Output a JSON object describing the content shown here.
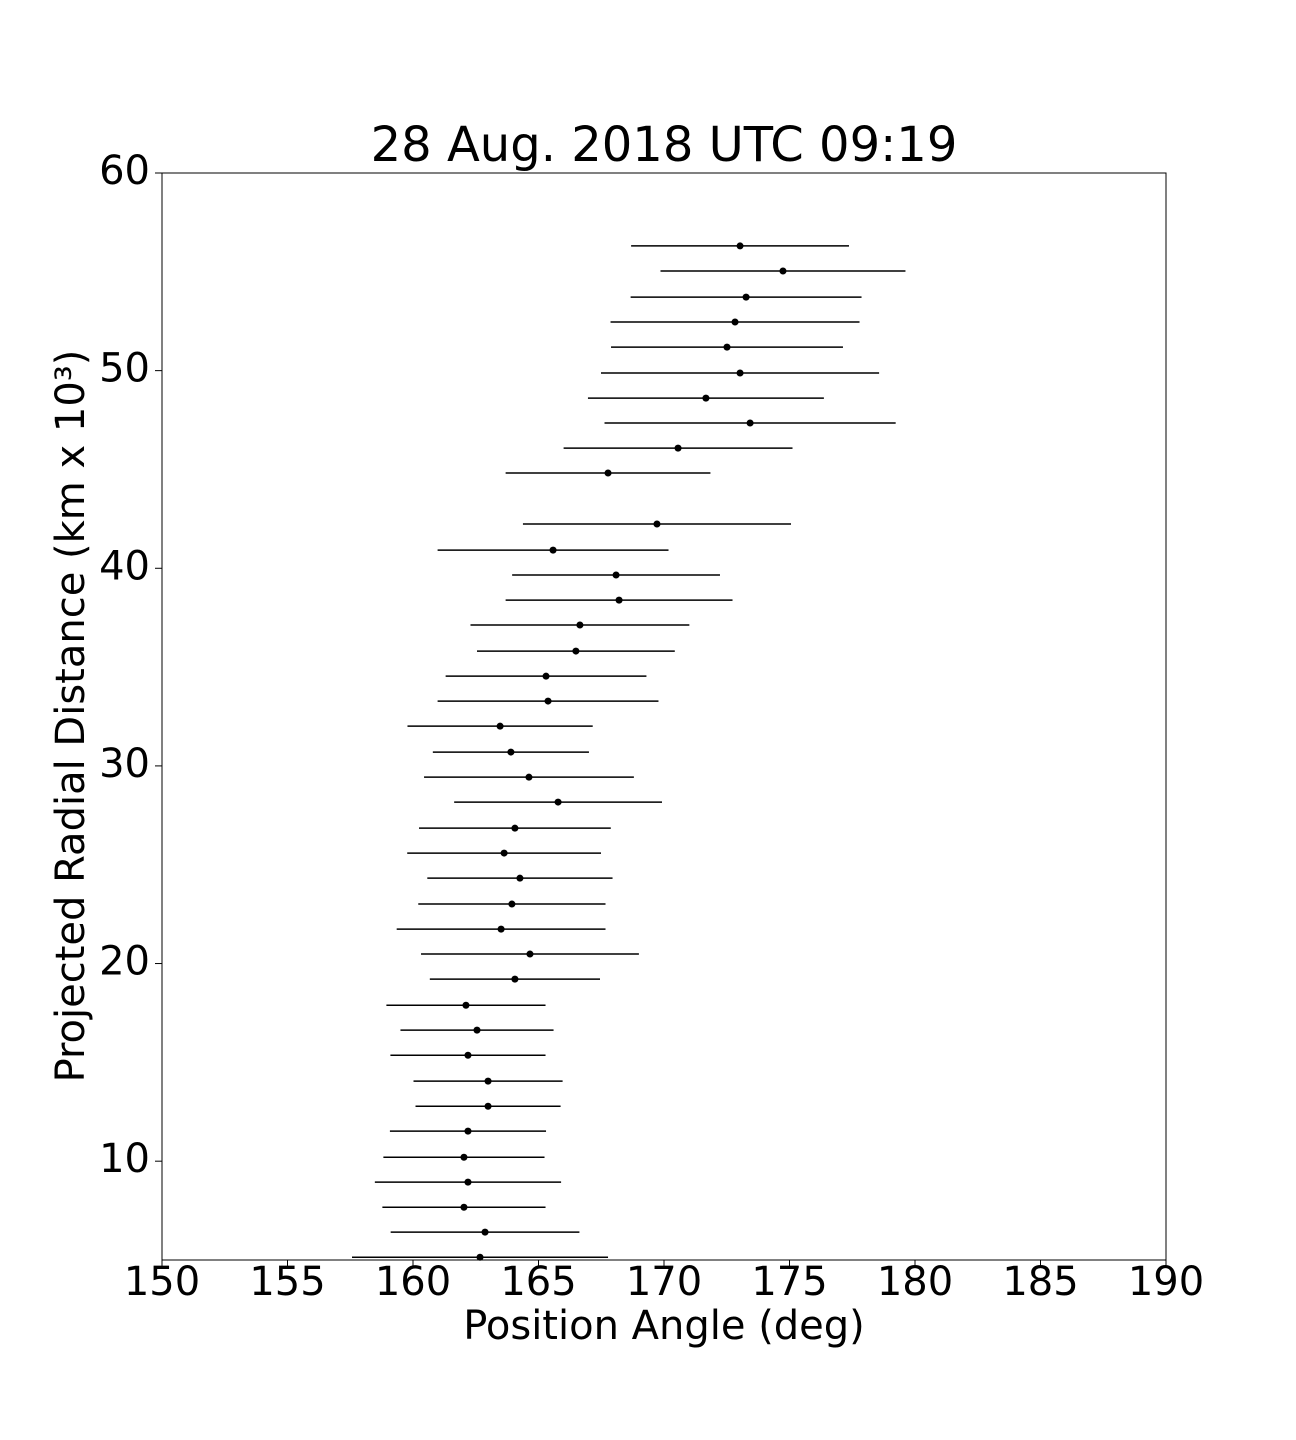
{
  "chart_data": {
    "type": "scatter",
    "title": "28 Aug. 2018 UTC 09:19",
    "xlabel": "Position Angle (deg)",
    "ylabel": "Projected Radial Distance (km x 10³)",
    "xlim": [
      150,
      190
    ],
    "ylim": [
      5,
      60
    ],
    "xticks": [
      150,
      155,
      160,
      165,
      170,
      175,
      180,
      185,
      190
    ],
    "yticks": [
      10,
      20,
      30,
      40,
      50,
      60
    ],
    "series": [
      {
        "color": "#000000",
        "x": [
          173.03,
          174.74,
          173.27,
          172.83,
          172.51,
          173.03,
          171.67,
          173.43,
          170.56,
          167.77,
          169.72,
          165.58,
          168.09,
          168.21,
          166.65,
          166.49,
          165.3,
          165.38,
          163.47,
          163.9,
          164.62,
          165.78,
          164.06,
          163.63,
          164.26,
          163.94,
          163.51,
          164.66,
          164.06,
          162.11,
          162.55,
          162.19,
          162.99,
          162.99,
          162.19,
          162.03,
          162.19,
          162.03,
          162.87,
          162.67
        ],
        "y": [
          56.31,
          55.04,
          53.72,
          52.46,
          51.19,
          49.88,
          48.61,
          47.35,
          46.08,
          44.82,
          42.24,
          40.92,
          39.66,
          38.39,
          37.13,
          35.81,
          34.54,
          33.28,
          32.01,
          30.7,
          29.43,
          28.17,
          26.85,
          25.59,
          24.32,
          23.01,
          21.74,
          20.48,
          19.21,
          17.89,
          16.63,
          15.36,
          14.05,
          12.78,
          11.52,
          10.2,
          8.94,
          7.67,
          6.41,
          5.14
        ],
        "xerr": [
          4.34,
          4.88,
          4.6,
          4.96,
          4.62,
          5.54,
          4.7,
          5.8,
          4.56,
          4.08,
          5.34,
          4.6,
          4.14,
          4.52,
          4.36,
          3.94,
          4.0,
          4.4,
          3.69,
          3.11,
          4.18,
          4.14,
          3.82,
          3.86,
          3.69,
          3.73,
          4.16,
          4.34,
          3.39,
          3.17,
          3.05,
          3.09,
          2.97,
          2.89,
          3.11,
          3.21,
          3.71,
          3.25,
          3.76,
          5.1
        ]
      }
    ]
  }
}
